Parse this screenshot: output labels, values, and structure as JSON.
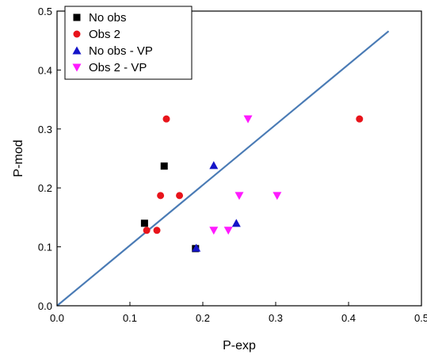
{
  "chart_data": {
    "type": "scatter",
    "xlabel": "P-exp",
    "ylabel": "P-mod",
    "xlim": [
      0,
      0.5
    ],
    "ylim": [
      0,
      0.5
    ],
    "x_ticks": [
      "0.0",
      "0.1",
      "0.2",
      "0.3",
      "0.4",
      "0.5"
    ],
    "y_ticks": [
      "0.0",
      "0.1",
      "0.2",
      "0.3",
      "0.4",
      "0.5"
    ],
    "legend_position": "top-left",
    "grid": false,
    "series": [
      {
        "name": "No obs",
        "marker": "square",
        "color": "#000000",
        "points": [
          [
            0.12,
            0.14
          ],
          [
            0.147,
            0.237
          ],
          [
            0.19,
            0.097
          ]
        ]
      },
      {
        "name": "Obs 2",
        "marker": "circle",
        "color": "#e8141b",
        "points": [
          [
            0.15,
            0.317
          ],
          [
            0.415,
            0.317
          ],
          [
            0.142,
            0.187
          ],
          [
            0.168,
            0.187
          ],
          [
            0.123,
            0.128
          ],
          [
            0.137,
            0.128
          ]
        ]
      },
      {
        "name": "No obs - VP",
        "marker": "triangle-up",
        "color": "#1414c8",
        "points": [
          [
            0.215,
            0.238
          ],
          [
            0.246,
            0.14
          ],
          [
            0.191,
            0.098
          ]
        ]
      },
      {
        "name": "Obs 2 - VP",
        "marker": "triangle-down",
        "color": "#ff1aff",
        "points": [
          [
            0.262,
            0.317
          ],
          [
            0.25,
            0.187
          ],
          [
            0.302,
            0.187
          ],
          [
            0.215,
            0.128
          ],
          [
            0.235,
            0.128
          ]
        ]
      }
    ],
    "reference_line": {
      "color": "#4a7bb5",
      "points": [
        [
          0,
          0
        ],
        [
          0.455,
          0.466
        ]
      ]
    }
  }
}
